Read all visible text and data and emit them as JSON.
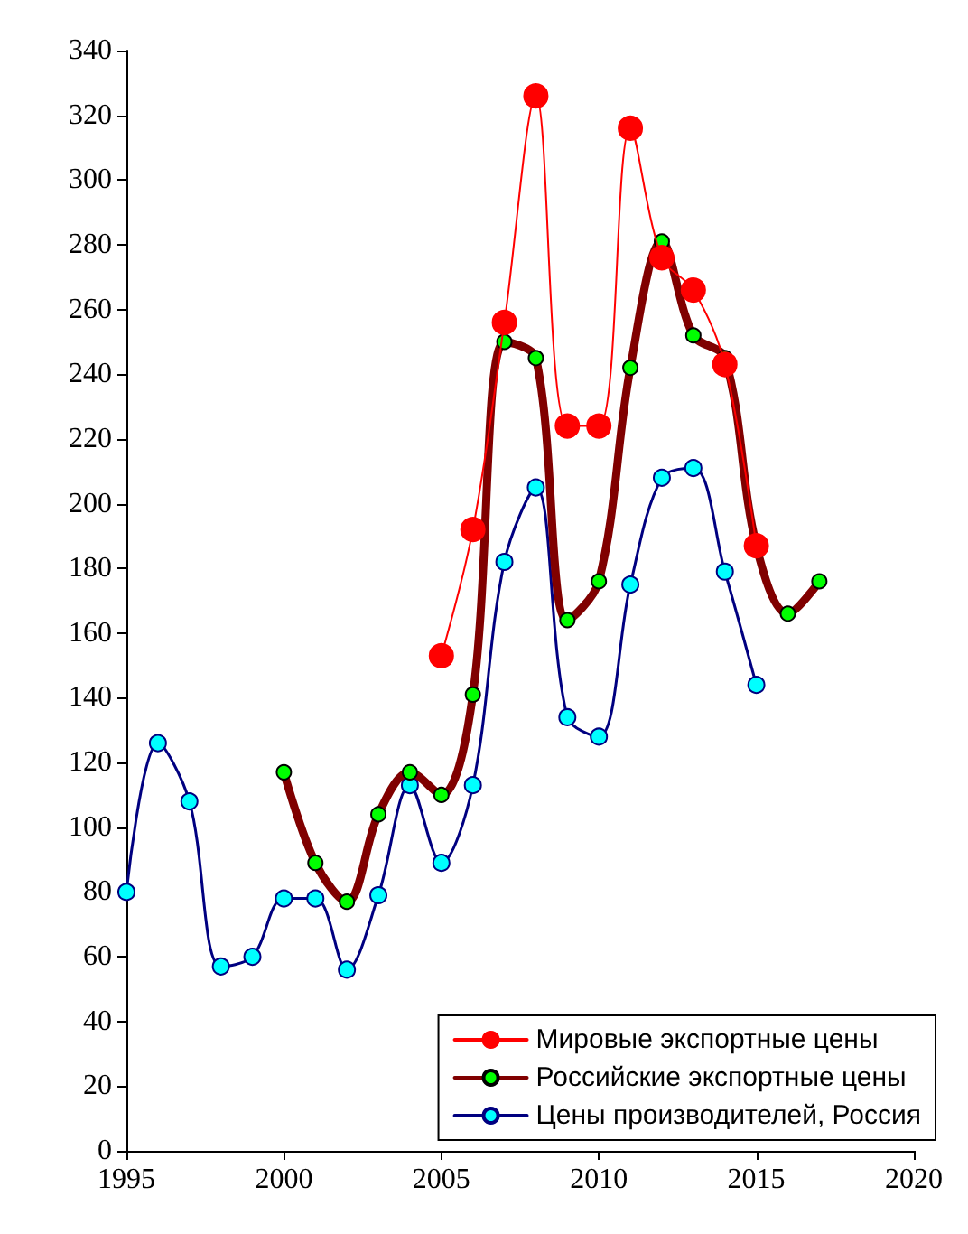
{
  "chart_data": {
    "type": "line",
    "series": [
      {
        "name": "Мировые экспортные цены",
        "color": "#ff0000",
        "x": [
          2005,
          2006,
          2007,
          2008,
          2009,
          2010,
          2011,
          2012,
          2013,
          2014,
          2015
        ],
        "values": [
          153,
          192,
          256,
          326,
          224,
          224,
          316,
          276,
          266,
          243,
          187
        ]
      },
      {
        "name": "Российские экспортные цены",
        "color": "#800000",
        "x": [
          2000,
          2001,
          2002,
          2003,
          2004,
          2005,
          2006,
          2007,
          2008,
          2009,
          2010,
          2011,
          2012,
          2013,
          2014,
          2015,
          2016,
          2017
        ],
        "values": [
          117,
          89,
          77,
          104,
          117,
          110,
          141,
          250,
          245,
          164,
          176,
          242,
          281,
          252,
          245,
          187,
          166,
          176
        ]
      },
      {
        "name": "Цены производителей, Россия",
        "color": "#000080",
        "x": [
          1995,
          1996,
          1997,
          1998,
          1999,
          2000,
          2001,
          2002,
          2003,
          2004,
          2005,
          2006,
          2007,
          2008,
          2009,
          2010,
          2011,
          2012,
          2013,
          2014,
          2015
        ],
        "values": [
          80,
          126,
          108,
          57,
          60,
          78,
          78,
          56,
          79,
          113,
          89,
          113,
          182,
          205,
          134,
          128,
          175,
          208,
          211,
          179,
          144
        ]
      }
    ],
    "xlim": [
      1995,
      2020
    ],
    "xticks": [
      1995,
      2000,
      2005,
      2010,
      2015,
      2020
    ],
    "ylim": [
      0,
      340
    ],
    "yticks": [
      0,
      20,
      40,
      60,
      80,
      100,
      120,
      140,
      160,
      180,
      200,
      220,
      240,
      260,
      280,
      300,
      320,
      340
    ],
    "grid": false,
    "legend": "bottom right",
    "marker": "circle",
    "line_style": "solid"
  }
}
